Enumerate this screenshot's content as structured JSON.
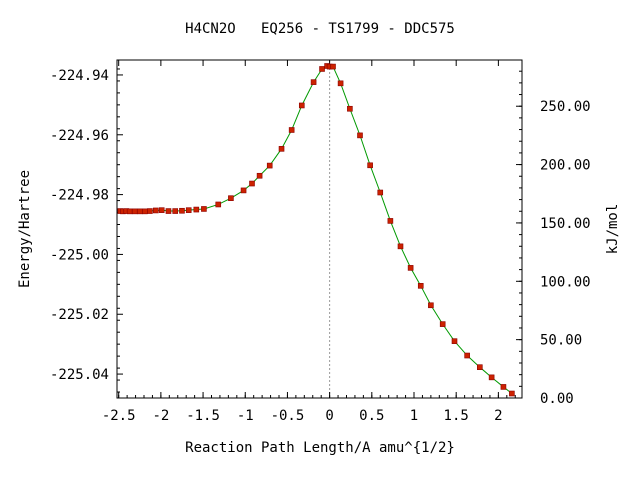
{
  "chart_data": {
    "type": "line",
    "title": "H4CN2O   EQ256 - TS1799 - DDC575",
    "xlabel": "Reaction Path Length/A amu^{1/2}",
    "ylabel": "Energy/Hartree",
    "y2label": "kJ/mol",
    "xlim": [
      -2.52,
      2.28
    ],
    "ylim": [
      -225.048,
      -224.935
    ],
    "y2lim": [
      0,
      289.6
    ],
    "x_ticks": [
      -2.5,
      -2,
      -1.5,
      -1,
      -0.5,
      0,
      0.5,
      1,
      1.5,
      2
    ],
    "x_tick_labels": [
      "-2.5",
      "-2",
      "-1.5",
      "-1",
      "-0.5",
      "0",
      "0.5",
      "1",
      "1.5",
      "2"
    ],
    "y_ticks": [
      -224.94,
      -224.96,
      -224.98,
      -225.0,
      -225.02,
      -225.04
    ],
    "y_tick_labels": [
      "-224.94",
      "-224.96",
      "-224.98",
      "-225.00",
      "-225.02",
      "-225.04"
    ],
    "y2_ticks": [
      0,
      50,
      100,
      150,
      200,
      250
    ],
    "y2_tick_labels": [
      "0.00",
      "50.00",
      "100.00",
      "150.00",
      "200.00",
      "250.00"
    ],
    "ts_marker_x": 0,
    "line_color": "#009900",
    "marker_color": "#cc2200",
    "marker_edge_color": "#8b0000",
    "ts_line_color": "#999999",
    "series": [
      {
        "x": [
          -2.48,
          -2.45,
          -2.41,
          -2.37,
          -2.31,
          -2.25,
          -2.19,
          -2.13,
          -2.06,
          -1.99,
          -1.91,
          -1.83,
          -1.75,
          -1.67,
          -1.58,
          -1.49,
          -1.32,
          -1.17,
          -1.02,
          -0.92,
          -0.83,
          -0.71,
          -0.57,
          -0.45,
          -0.33,
          -0.19,
          -0.09,
          -0.03,
          0.0,
          0.04,
          0.13,
          0.24,
          0.36,
          0.48,
          0.6,
          0.72,
          0.84,
          0.96,
          1.08,
          1.2,
          1.34,
          1.48,
          1.63,
          1.78,
          1.92,
          2.06,
          2.16
        ],
        "y": [
          -224.9855,
          -224.9856,
          -224.9855,
          -224.9856,
          -224.9856,
          -224.9856,
          -224.9856,
          -224.9855,
          -224.9853,
          -224.9852,
          -224.9855,
          -224.9855,
          -224.9854,
          -224.9852,
          -224.985,
          -224.9848,
          -224.9833,
          -224.9812,
          -224.9786,
          -224.9763,
          -224.9737,
          -224.9703,
          -224.9647,
          -224.9584,
          -224.9502,
          -224.9424,
          -224.938,
          -224.937,
          -224.9372,
          -224.9372,
          -224.9428,
          -224.9513,
          -224.9602,
          -224.9702,
          -224.9793,
          -224.9888,
          -224.9973,
          -225.0045,
          -225.0105,
          -225.017,
          -225.0233,
          -225.029,
          -225.0338,
          -225.0377,
          -225.0411,
          -225.0443,
          -225.0465
        ]
      }
    ]
  }
}
